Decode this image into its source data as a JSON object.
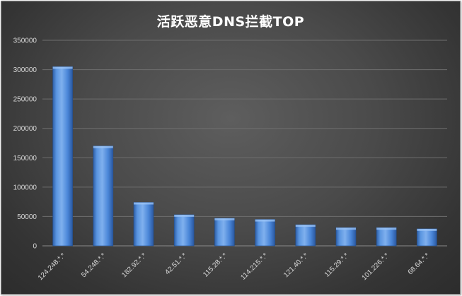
{
  "chart_data": {
    "type": "bar",
    "title": "活跃恶意DNS拦截TOP",
    "categories": [
      "124.248.*.*",
      "54.248.*.*",
      "182.92.*.*",
      "42.51.*.*",
      "115.28.*.*",
      "114.215.*.*",
      "121.40.*.*",
      "115.29.*.*",
      "101.226.*.*",
      "68.64.*.*"
    ],
    "values": [
      305000,
      170000,
      74000,
      53000,
      47000,
      45000,
      36000,
      31000,
      31000,
      29000
    ],
    "ylim": [
      0,
      350000
    ],
    "yticks": [
      0,
      50000,
      100000,
      150000,
      200000,
      250000,
      300000,
      350000
    ],
    "ytick_labels": [
      "0",
      "50000",
      "100000",
      "150000",
      "200000",
      "250000",
      "300000",
      "350000"
    ],
    "grid": true,
    "legend": "none",
    "colors": {
      "bar": "#4a86d8",
      "bar_dark": "#2e5fa8",
      "bar_light": "#7fb0ee",
      "grid": "#6e6e6e",
      "text": "#d9d9d9"
    }
  }
}
